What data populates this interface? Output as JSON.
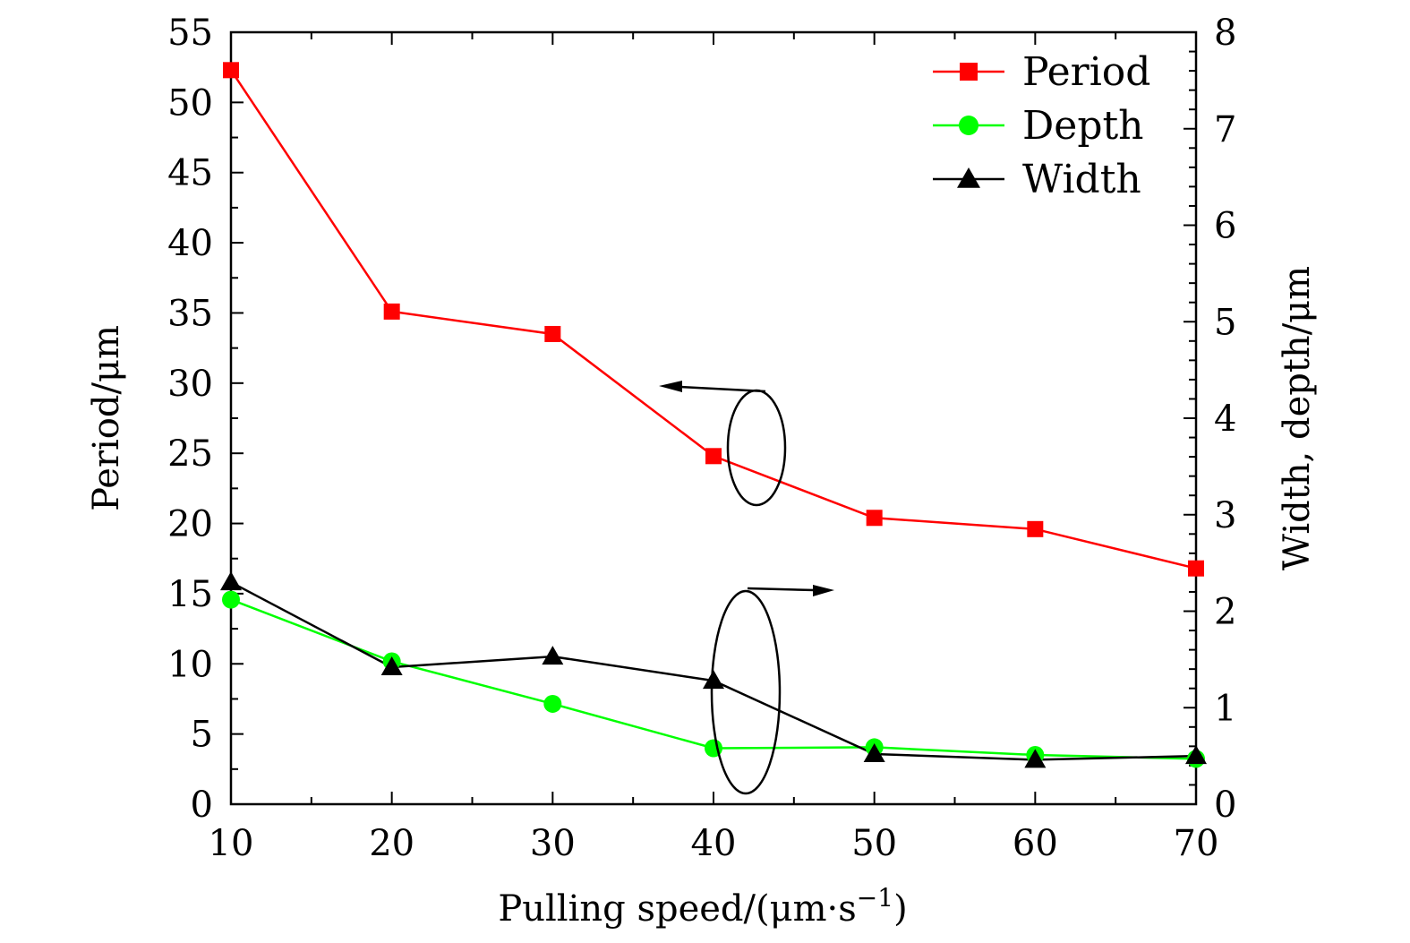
{
  "chart_data": {
    "type": "line",
    "x": [
      10,
      20,
      30,
      40,
      50,
      60,
      70
    ],
    "xlabel": "Pulling speed/(μm·s",
    "xlabel_sup": "−1",
    "xlabel_tail": ")",
    "xlim": [
      10,
      70
    ],
    "xticks": [
      "10",
      "20",
      "30",
      "40",
      "50",
      "60",
      "70"
    ],
    "ylabel_left": "Period/μm",
    "ylim_left": [
      0,
      55
    ],
    "yticks_left": [
      "0",
      "5",
      "10",
      "15",
      "20",
      "25",
      "30",
      "35",
      "40",
      "45",
      "50",
      "55"
    ],
    "ylabel_right": "Width, depth/μm",
    "ylim_right": [
      0,
      8
    ],
    "yticks_right": [
      "0",
      "1",
      "2",
      "3",
      "4",
      "5",
      "6",
      "7",
      "8"
    ],
    "grid": false,
    "legend_position": "top-right",
    "series": [
      {
        "name": "Period",
        "axis": "left",
        "color": "#ff0000",
        "marker": "square",
        "values": [
          52.3,
          35.1,
          33.5,
          24.8,
          20.4,
          19.6,
          16.8
        ]
      },
      {
        "name": "Depth",
        "axis": "right",
        "color": "#00ff00",
        "marker": "circle",
        "values": [
          2.12,
          1.48,
          1.04,
          0.58,
          0.59,
          0.51,
          0.47
        ]
      },
      {
        "name": "Width",
        "axis": "right",
        "color": "#000000",
        "marker": "triangle",
        "values": [
          2.3,
          1.42,
          1.53,
          1.28,
          0.52,
          0.46,
          0.5
        ]
      }
    ],
    "annotations": [
      {
        "label": "ellipse-left-arrow",
        "targets": "Period",
        "direction": "left-axis"
      },
      {
        "label": "ellipse-right-arrow",
        "targets": "Width, Depth",
        "direction": "right-axis"
      }
    ]
  }
}
